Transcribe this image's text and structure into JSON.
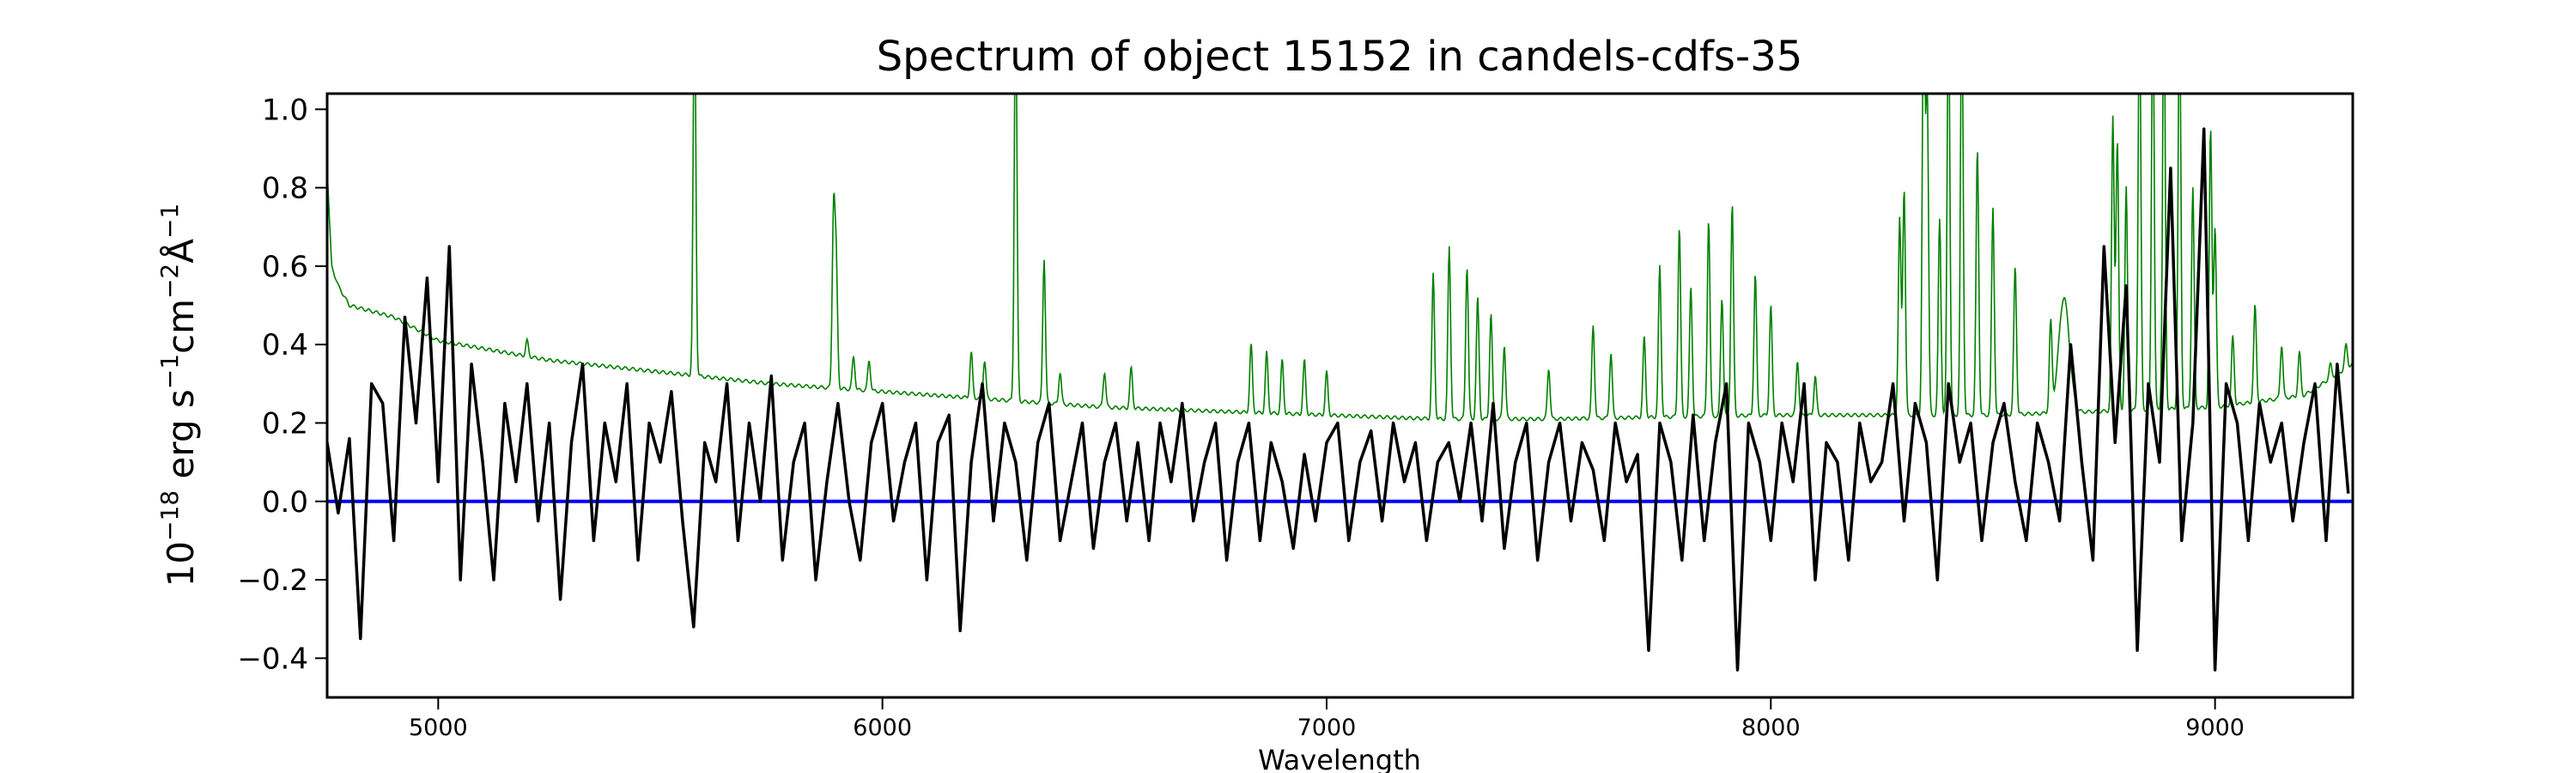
{
  "chart_data": {
    "type": "line",
    "title": "Spectrum of object 15152 in candels-cdfs-35",
    "xlabel": "Wavelength",
    "ylabel": {
      "base": "10",
      "exp1": "−18",
      "unit1": " erg s",
      "exp2": "−1",
      "unit2": "cm",
      "exp3": "−2",
      "unit3": "Å",
      "exp4": "−1"
    },
    "xlim": [
      4750,
      9310
    ],
    "ylim": [
      -0.5,
      1.04
    ],
    "xticks": [
      5000,
      6000,
      7000,
      8000,
      9000
    ],
    "yticks": [
      -0.4,
      -0.2,
      0.0,
      0.2,
      0.4,
      0.6,
      0.8,
      1.0
    ],
    "ytick_labels": [
      "−0.4",
      "−0.2",
      "0.0",
      "0.2",
      "0.4",
      "0.6",
      "0.8",
      "1.0"
    ],
    "grid": false,
    "colors": {
      "flux": "#000000",
      "error": "#008000",
      "zero": "#0000ff"
    },
    "series": [
      {
        "name": "flux",
        "x_start": 4750,
        "x_step": 25,
        "values": [
          0.15,
          -0.03,
          0.16,
          -0.35,
          0.3,
          0.25,
          -0.1,
          0.47,
          0.2,
          0.57,
          0.05,
          0.65,
          -0.2,
          0.35,
          0.1,
          -0.2,
          0.25,
          0.05,
          0.3,
          -0.05,
          0.2,
          -0.25,
          0.15,
          0.35,
          -0.1,
          0.2,
          0.05,
          0.3,
          -0.15,
          0.2,
          0.1,
          0.28,
          -0.05,
          -0.32,
          0.15,
          0.05,
          0.3,
          -0.1,
          0.2,
          0.0,
          0.32,
          -0.15,
          0.1,
          0.2,
          -0.2,
          0.05,
          0.25,
          0.0,
          -0.15,
          0.15,
          0.25,
          -0.05,
          0.1,
          0.2,
          -0.2,
          0.15,
          0.22,
          -0.33,
          0.1,
          0.3,
          -0.05,
          0.2,
          0.1,
          -0.15,
          0.15,
          0.25,
          -0.1,
          0.05,
          0.2,
          -0.12,
          0.1,
          0.2,
          -0.05,
          0.15,
          -0.1,
          0.2,
          0.05,
          0.25,
          -0.05,
          0.1,
          0.2,
          -0.15,
          0.1,
          0.2,
          -0.1,
          0.15,
          0.05,
          -0.12,
          0.12,
          -0.05,
          0.15,
          0.2,
          -0.1,
          0.1,
          0.18,
          -0.05,
          0.2,
          0.05,
          0.15,
          -0.1,
          0.1,
          0.15,
          0.0,
          0.2,
          -0.05,
          0.25,
          -0.12,
          0.1,
          0.2,
          -0.15,
          0.1,
          0.2,
          -0.05,
          0.15,
          0.08,
          -0.1,
          0.2,
          0.05,
          0.12,
          -0.38,
          0.2,
          0.1,
          -0.15,
          0.22,
          -0.1,
          0.15,
          0.3,
          -0.43,
          0.2,
          0.1,
          -0.1,
          0.2,
          0.05,
          0.3,
          -0.2,
          0.15,
          0.1,
          -0.15,
          0.2,
          0.05,
          0.1,
          0.3,
          -0.05,
          0.25,
          0.15,
          -0.2,
          0.3,
          0.1,
          0.2,
          -0.1,
          0.15,
          0.25,
          0.05,
          -0.1,
          0.2,
          0.1,
          -0.05,
          0.4,
          0.1,
          -0.15,
          0.65,
          0.15,
          0.55,
          -0.38,
          0.3,
          0.1,
          0.85,
          -0.1,
          0.2,
          0.95,
          -0.43,
          0.3,
          0.2,
          -0.1,
          0.25,
          0.1,
          0.2,
          -0.05,
          0.15,
          0.3,
          -0.1,
          0.35,
          0.02
        ]
      },
      {
        "name": "error",
        "baseline": [
          [
            4750,
            0.85
          ],
          [
            4760,
            0.6
          ],
          [
            4775,
            0.55
          ],
          [
            4800,
            0.5
          ],
          [
            4900,
            0.47
          ],
          [
            5000,
            0.41
          ],
          [
            5250,
            0.36
          ],
          [
            5500,
            0.33
          ],
          [
            5750,
            0.3
          ],
          [
            6000,
            0.28
          ],
          [
            6250,
            0.26
          ],
          [
            6500,
            0.24
          ],
          [
            7000,
            0.22
          ],
          [
            7250,
            0.21
          ],
          [
            7500,
            0.21
          ],
          [
            8000,
            0.22
          ],
          [
            8500,
            0.22
          ],
          [
            9000,
            0.24
          ],
          [
            9200,
            0.27
          ],
          [
            9310,
            0.35
          ]
        ],
        "emission_lines": [
          [
            5200,
            0.41
          ],
          [
            5577,
            1.3
          ],
          [
            5890,
            0.74
          ],
          [
            5896,
            0.6
          ],
          [
            5935,
            0.37
          ],
          [
            5970,
            0.36
          ],
          [
            6200,
            0.38
          ],
          [
            6230,
            0.36
          ],
          [
            6300,
            1.3
          ],
          [
            6364,
            0.62
          ],
          [
            6400,
            0.33
          ],
          [
            6500,
            0.33
          ],
          [
            6560,
            0.34
          ],
          [
            6830,
            0.4
          ],
          [
            6865,
            0.38
          ],
          [
            6900,
            0.36
          ],
          [
            6950,
            0.36
          ],
          [
            7000,
            0.33
          ],
          [
            7240,
            0.58
          ],
          [
            7276,
            0.65
          ],
          [
            7316,
            0.6
          ],
          [
            7340,
            0.52
          ],
          [
            7370,
            0.48
          ],
          [
            7400,
            0.4
          ],
          [
            7500,
            0.34
          ],
          [
            7600,
            0.45
          ],
          [
            7640,
            0.38
          ],
          [
            7715,
            0.42
          ],
          [
            7750,
            0.6
          ],
          [
            7794,
            0.7
          ],
          [
            7820,
            0.55
          ],
          [
            7860,
            0.72
          ],
          [
            7890,
            0.52
          ],
          [
            7913,
            0.76
          ],
          [
            7965,
            0.58
          ],
          [
            8000,
            0.5
          ],
          [
            8060,
            0.36
          ],
          [
            8100,
            0.32
          ],
          [
            8290,
            0.72
          ],
          [
            8300,
            0.8
          ],
          [
            8344,
            1.3
          ],
          [
            8352,
            1.05
          ],
          [
            8380,
            0.72
          ],
          [
            8400,
            1.3
          ],
          [
            8430,
            1.3
          ],
          [
            8465,
            0.9
          ],
          [
            8500,
            0.75
          ],
          [
            8550,
            0.6
          ],
          [
            8630,
            0.45
          ],
          [
            8660,
            0.52
          ],
          [
            8770,
            0.98
          ],
          [
            8780,
            0.92
          ],
          [
            8800,
            0.8
          ],
          [
            8830,
            1.3
          ],
          [
            8860,
            1.3
          ],
          [
            8885,
            1.3
          ],
          [
            8920,
            1.3
          ],
          [
            8950,
            0.8
          ],
          [
            8990,
            0.95
          ],
          [
            9000,
            0.7
          ],
          [
            9040,
            0.42
          ],
          [
            9090,
            0.5
          ],
          [
            9150,
            0.4
          ],
          [
            9190,
            0.38
          ],
          [
            9260,
            0.35
          ],
          [
            9295,
            0.4
          ]
        ]
      },
      {
        "name": "zero",
        "values": [
          0.0,
          0.0
        ]
      }
    ]
  }
}
